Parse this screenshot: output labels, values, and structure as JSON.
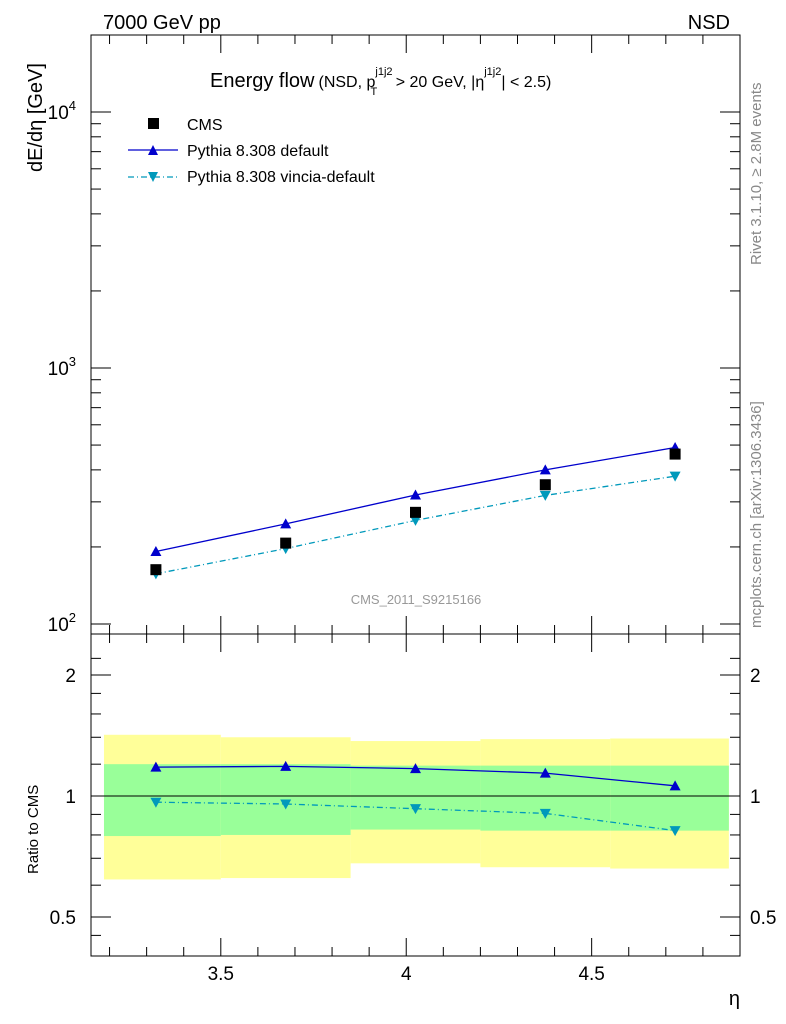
{
  "header": {
    "left": "7000 GeV pp",
    "right": "NSD"
  },
  "side_labels": {
    "rivet": "Rivet 3.1.10, ≥ 2.8M events",
    "mcplots": "mcplots.cern.ch [arXiv:1306.3436]"
  },
  "plot_title": {
    "main": "Energy flow",
    "detail_prefix": "(NSD, p",
    "pt_sup": "j1j2",
    "pt_sub": "T",
    "detail_mid": " > 20 GeV, |η",
    "eta_sup": "j1j2",
    "detail_suffix": "| < 2.5)"
  },
  "watermark": "CMS_2011_S9215166",
  "chart_data": [
    {
      "type": "scatter",
      "name": "main",
      "ylabel": "dE/dη [GeV]",
      "yscale": "log",
      "ylim": [
        100,
        20000
      ],
      "xlim": [
        3.15,
        4.9
      ],
      "y_tick_labels": [
        {
          "v": 100,
          "base": "10",
          "exp": "2"
        },
        {
          "v": 1000,
          "base": "10",
          "exp": "3"
        },
        {
          "v": 10000,
          "base": "10",
          "exp": "4"
        }
      ],
      "x": [
        3.325,
        3.675,
        4.025,
        4.375,
        4.725
      ],
      "series": [
        {
          "name": "CMS",
          "style": "square",
          "color": "#000000",
          "values": [
            163,
            207,
            273,
            350,
            461
          ]
        },
        {
          "name": "Pythia 8.308 default",
          "style": "line-up-triangle",
          "color": "#0000cc",
          "values": [
            192,
            246,
            319,
            400,
            489
          ]
        },
        {
          "name": "Pythia 8.308 vincia-default",
          "style": "dashdot-down-triangle",
          "color": "#0099bb",
          "values": [
            157,
            197,
            254,
            318,
            378
          ]
        }
      ]
    },
    {
      "type": "line",
      "name": "ratio",
      "ylabel": "Ratio to CMS",
      "yscale": "log",
      "ylim": [
        0.44,
        2.4
      ],
      "xlim": [
        3.15,
        4.9
      ],
      "xlabel": "η",
      "x_ticks": [
        3.5,
        4,
        4.5
      ],
      "x_tick_labels": [
        "3.5",
        "4",
        "4.5"
      ],
      "y_ticks": [
        0.5,
        1,
        2
      ],
      "y_tick_labels": [
        "0.5",
        "1",
        "2"
      ],
      "x": [
        3.325,
        3.675,
        4.025,
        4.375,
        4.725
      ],
      "bands": {
        "edges": [
          3.15,
          3.5,
          3.85,
          4.2,
          4.55,
          4.9
        ],
        "yellow": {
          "color": "#ffff99",
          "lo": [
            0.62,
            0.625,
            0.68,
            0.665,
            0.66
          ],
          "hi": [
            1.42,
            1.4,
            1.37,
            1.385,
            1.39
          ]
        },
        "green": {
          "color": "#99ff99",
          "lo": [
            0.795,
            0.8,
            0.825,
            0.82,
            0.82
          ],
          "hi": [
            1.2,
            1.2,
            1.19,
            1.19,
            1.19
          ]
        }
      },
      "series": [
        {
          "name": "Pythia 8.308 default",
          "style": "line-up-triangle",
          "color": "#0000cc",
          "values": [
            1.18,
            1.185,
            1.17,
            1.14,
            1.06
          ]
        },
        {
          "name": "Pythia 8.308 vincia-default",
          "style": "dashdot-down-triangle",
          "color": "#0099bb",
          "values": [
            0.965,
            0.955,
            0.93,
            0.905,
            0.82
          ]
        }
      ]
    }
  ]
}
